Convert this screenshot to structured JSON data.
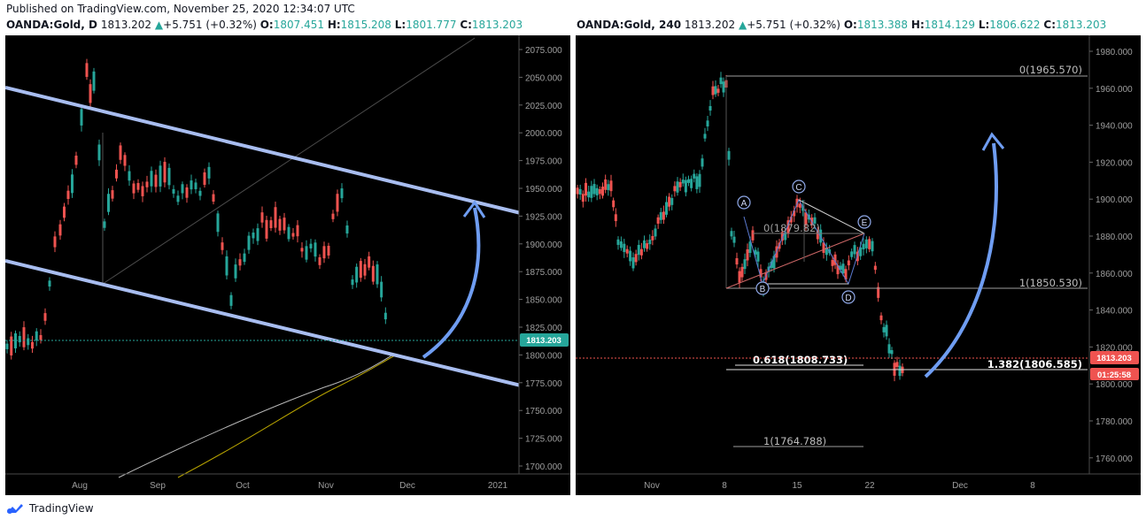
{
  "published": "Published on TradingView.com, November 25, 2020 12:34:07 UTC",
  "branding": "TradingView",
  "colors": {
    "up": "#26a69a",
    "down": "#ef5350",
    "bg": "#000000",
    "channel": "#a8bdf0",
    "arrow": "#6f9df2"
  },
  "left": {
    "symbol": "OANDA:Gold, D",
    "last": "1813.202",
    "change": "+5.751 (+0.32%)",
    "o_label": "O:",
    "o": "1807.451",
    "h_label": "H:",
    "h": "1815.208",
    "l_label": "L:",
    "l": "1801.777",
    "c_label": "C:",
    "c": "1813.203",
    "price_badge": "1813.203",
    "y_ticks": [
      "2075.000",
      "2050.000",
      "2025.000",
      "2000.000",
      "1975.000",
      "1950.000",
      "1925.000",
      "1900.000",
      "1875.000",
      "1850.000",
      "1825.000",
      "1800.000",
      "1775.000",
      "1750.000",
      "1725.000",
      "1700.000"
    ],
    "x_ticks": [
      "Aug",
      "Sep",
      "Oct",
      "Nov",
      "Dec",
      "2021"
    ]
  },
  "right": {
    "symbol": "OANDA:Gold, 240",
    "last": "1813.202",
    "change": "+5.751 (+0.32%)",
    "o_label": "O:",
    "o": "1813.388",
    "h_label": "H:",
    "h": "1814.129",
    "l_label": "L:",
    "l": "1806.622",
    "c_label": "C:",
    "c": "1813.203",
    "price_badge": "1813.203",
    "timer_badge": "01:25:58",
    "y_ticks": [
      "1980.000",
      "1960.000",
      "1940.000",
      "1920.000",
      "1900.000",
      "1880.000",
      "1860.000",
      "1840.000",
      "1820.000",
      "1800.000",
      "1780.000",
      "1760.000"
    ],
    "x_ticks": [
      "Nov",
      "8",
      "15",
      "22",
      "Dec",
      "8"
    ],
    "fib_labels": {
      "top": "0(1965.570)",
      "base": "1(1850.530)",
      "ext": "1.382(1806.585)",
      "retr": "0.618(1808.733)",
      "low": "1(1764.788)",
      "mid": "0(1879.82)"
    },
    "pattern_points": [
      "A",
      "B",
      "C",
      "D",
      "E"
    ]
  }
}
